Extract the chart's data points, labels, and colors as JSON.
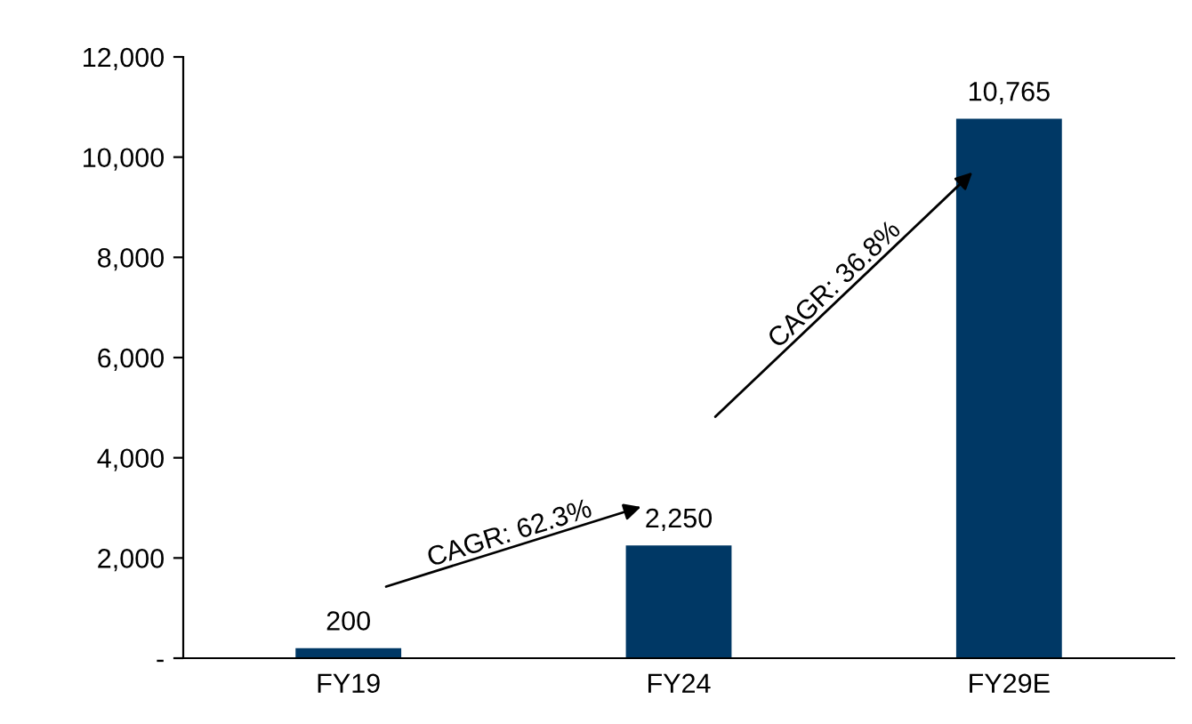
{
  "chart_data": {
    "type": "bar",
    "categories": [
      "FY19",
      "FY24",
      "FY29E"
    ],
    "values": [
      200,
      2250,
      10765
    ],
    "color": "#003865",
    "data_labels": true,
    "value_labels": [
      "200",
      "2,250",
      "10,765"
    ],
    "ylim": [
      0,
      12000
    ],
    "yticks": [
      {
        "value": 0,
        "label": "-"
      },
      {
        "value": 2000,
        "label": "2,000"
      },
      {
        "value": 4000,
        "label": "4,000"
      },
      {
        "value": 6000,
        "label": "6,000"
      },
      {
        "value": 8000,
        "label": "8,000"
      },
      {
        "value": 10000,
        "label": "10,000"
      },
      {
        "value": 12000,
        "label": "12,000"
      }
    ],
    "grid": false,
    "annotations": [
      "CAGR: 62.3%",
      "CAGR: 36.8%"
    ]
  }
}
